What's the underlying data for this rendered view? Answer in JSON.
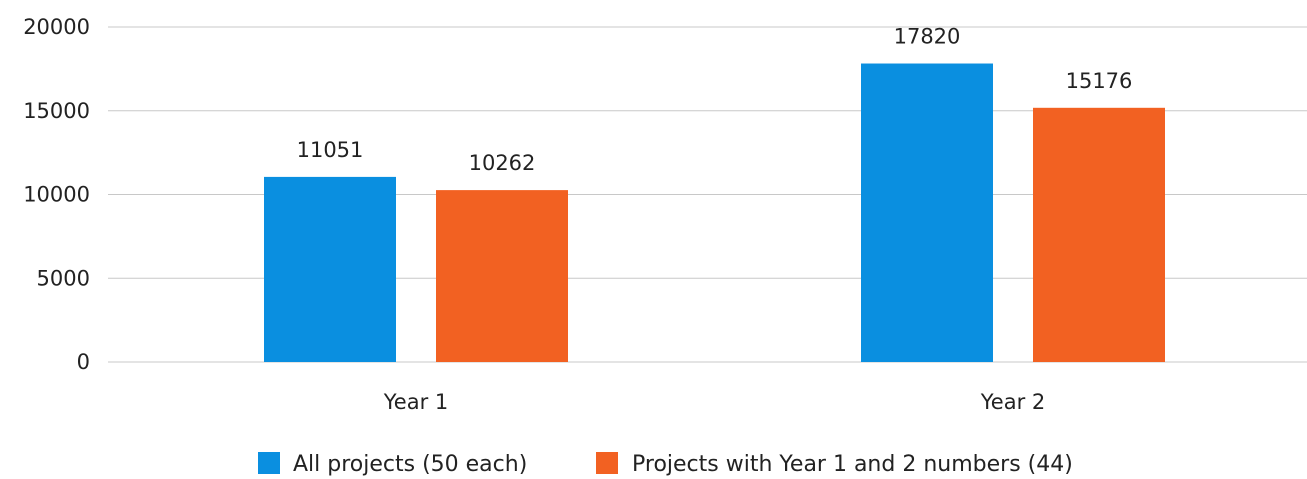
{
  "chart_data": {
    "type": "bar",
    "title": "",
    "xlabel": "",
    "ylabel": "",
    "categories": [
      "Year 1",
      "Year 2"
    ],
    "ylim": [
      0,
      20000
    ],
    "yticks": [
      0,
      5000,
      10000,
      15000,
      20000
    ],
    "grid": true,
    "legend_position": "bottom",
    "series": [
      {
        "name": "All projects (50 each)",
        "values": [
          11051,
          17820
        ],
        "color": "#0a8fe0"
      },
      {
        "name": "Projects with Year 1 and 2 numbers (44)",
        "values": [
          10262,
          15176
        ],
        "color": "#f26122"
      }
    ],
    "data_labels": [
      [
        "11051",
        "17820"
      ],
      [
        "10262",
        "15176"
      ]
    ]
  }
}
